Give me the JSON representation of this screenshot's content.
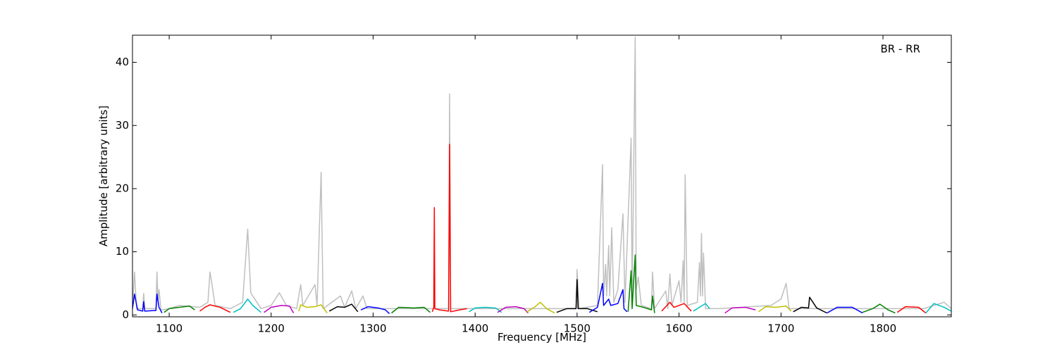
{
  "chart_data": {
    "type": "line",
    "xlabel": "Frequency [MHz]",
    "ylabel": "Amplitude [arbitrary units]",
    "annotation": "BR - RR",
    "xlim": [
      1064,
      1867
    ],
    "ylim": [
      -0.3,
      44.3
    ],
    "xticks": [
      1100,
      1200,
      1300,
      1400,
      1500,
      1600,
      1700,
      1800
    ],
    "yticks": [
      0,
      10,
      20,
      30,
      40
    ],
    "series": [
      {
        "color": "#bfbfbf",
        "x": [
          1064,
          1066,
          1068,
          1074,
          1075,
          1076,
          1087,
          1088,
          1089,
          1090,
          1092,
          1100,
          1110,
          1130,
          1138,
          1140,
          1142,
          1145,
          1160,
          1172,
          1177,
          1180,
          1190,
          1200,
          1208,
          1215,
          1225,
          1229,
          1231,
          1243,
          1245,
          1249,
          1251,
          1268,
          1272,
          1279,
          1283,
          1290,
          1294,
          1320,
          1360,
          1374,
          1375,
          1376,
          1420,
          1480,
          1499,
          1500,
          1502,
          1520,
          1525,
          1526,
          1528,
          1529,
          1531,
          1532,
          1534,
          1536,
          1540,
          1545,
          1547,
          1553,
          1554,
          1557,
          1558,
          1560,
          1563,
          1573,
          1574,
          1576,
          1587,
          1589,
          1591,
          1593,
          1600,
          1602,
          1604,
          1605,
          1606,
          1608,
          1618,
          1620,
          1621,
          1622,
          1623,
          1624,
          1626,
          1640,
          1690,
          1700,
          1705,
          1708,
          1750,
          1840,
          1860,
          1867
        ],
        "values": [
          1,
          6.8,
          1,
          1,
          3.4,
          1,
          1,
          6.8,
          2,
          4,
          0.8,
          1,
          1.5,
          1.2,
          2,
          6.8,
          4.8,
          1.5,
          1,
          2,
          13.6,
          3.5,
          1,
          1.5,
          3.5,
          1.5,
          1,
          4.8,
          1.5,
          4.8,
          1.5,
          22.6,
          1,
          3,
          1.2,
          3.8,
          1,
          3,
          1,
          1,
          1,
          1,
          35,
          1,
          1,
          1,
          1,
          7.2,
          1,
          1.5,
          23.8,
          3,
          8,
          3,
          11,
          3,
          13.8,
          2,
          4,
          16,
          2,
          28,
          2,
          44,
          4,
          6,
          1.5,
          1,
          6.8,
          1,
          3.8,
          1,
          6.5,
          1.5,
          5.4,
          2,
          8.6,
          2,
          22.2,
          1.5,
          2,
          8.3,
          3,
          12.9,
          3,
          9.8,
          1,
          1,
          1.5,
          2.5,
          5,
          1,
          1,
          1,
          2,
          1
        ]
      },
      {
        "color": "#0000ff",
        "x": [
          1064,
          1066,
          1069,
          1074,
          1075,
          1076,
          1087,
          1088,
          1090,
          1093
        ],
        "values": [
          1,
          3.3,
          0.8,
          0.6,
          2.1,
          0.6,
          0.7,
          3.3,
          1.2,
          0.3
        ]
      },
      {
        "color": "#008000",
        "x": [
          1095,
          1100,
          1110,
          1120,
          1125
        ],
        "values": [
          0.4,
          1,
          1.2,
          1.4,
          0.8
        ]
      },
      {
        "color": "#ff0000",
        "x": [
          1130,
          1135,
          1140,
          1150,
          1160
        ],
        "values": [
          0.6,
          1.2,
          1.6,
          1.2,
          0.4
        ]
      },
      {
        "color": "#00bfbf",
        "x": [
          1163,
          1170,
          1177,
          1182,
          1190
        ],
        "values": [
          0.4,
          1,
          2.5,
          1.5,
          0.4
        ]
      },
      {
        "color": "#bf00bf",
        "x": [
          1193,
          1200,
          1210,
          1218,
          1222
        ],
        "values": [
          0.4,
          1.2,
          1.5,
          1.4,
          0.3
        ]
      },
      {
        "color": "#bfbf00",
        "x": [
          1227,
          1229,
          1235,
          1243,
          1249,
          1255
        ],
        "values": [
          0.6,
          1.6,
          1.2,
          1.3,
          1.6,
          0.3
        ]
      },
      {
        "color": "#000000",
        "x": [
          1257,
          1265,
          1272,
          1279,
          1285
        ],
        "values": [
          0.6,
          1.3,
          1.2,
          1.7,
          0.5
        ]
      },
      {
        "color": "#0000ff",
        "x": [
          1288,
          1295,
          1305,
          1312,
          1316
        ],
        "values": [
          0.8,
          1.3,
          1.1,
          0.8,
          0.2
        ]
      },
      {
        "color": "#008000",
        "x": [
          1318,
          1325,
          1340,
          1350,
          1356
        ],
        "values": [
          0.3,
          1.2,
          1.1,
          1.2,
          0.4
        ]
      },
      {
        "color": "#ff0000",
        "x": [
          1358,
          1359.5,
          1360,
          1360.5,
          1365,
          1374,
          1375,
          1376,
          1385,
          1392
        ],
        "values": [
          0.5,
          1.2,
          17,
          1,
          0.8,
          0.6,
          27,
          0.5,
          0.8,
          1
        ]
      },
      {
        "color": "#00bfbf",
        "x": [
          1394,
          1400,
          1410,
          1420,
          1426
        ],
        "values": [
          0.5,
          1.1,
          1.2,
          1.1,
          0.4
        ]
      },
      {
        "color": "#bf00bf",
        "x": [
          1422,
          1430,
          1440,
          1448,
          1452
        ],
        "values": [
          0.4,
          1.2,
          1.3,
          1,
          0.3
        ]
      },
      {
        "color": "#bfbf00",
        "x": [
          1450,
          1458,
          1464,
          1470,
          1478
        ],
        "values": [
          0.4,
          1.2,
          2,
          1,
          0.3
        ]
      },
      {
        "color": "#000000",
        "x": [
          1480,
          1490,
          1499,
          1500,
          1501,
          1510,
          1520
        ],
        "values": [
          0.4,
          1,
          1,
          5.6,
          1,
          1,
          0.5
        ]
      },
      {
        "color": "#0000ff",
        "x": [
          1512,
          1520,
          1525,
          1526,
          1531,
          1533,
          1540,
          1545,
          1546,
          1549
        ],
        "values": [
          0.4,
          1.2,
          5,
          1.5,
          2.5,
          1.5,
          1.8,
          4,
          1,
          0.5
        ]
      },
      {
        "color": "#008000",
        "x": [
          1550,
          1553,
          1554,
          1557,
          1558,
          1565,
          1573,
          1574,
          1576
        ],
        "values": [
          0.5,
          7,
          1,
          9.5,
          1.5,
          1.2,
          0.8,
          3,
          0.3
        ]
      },
      {
        "color": "#ff0000",
        "x": [
          1583,
          1591,
          1595,
          1605,
          1612
        ],
        "values": [
          0.6,
          2,
          1.2,
          1.8,
          0.6
        ]
      },
      {
        "color": "#00bfbf",
        "x": [
          1614,
          1620,
          1626,
          1630
        ],
        "values": [
          0.6,
          1.2,
          1.8,
          1
        ]
      },
      {
        "color": "#bf00bf",
        "x": [
          1645,
          1652,
          1665,
          1675
        ],
        "values": [
          0.3,
          1.1,
          1.2,
          0.8
        ]
      },
      {
        "color": "#bfbf00",
        "x": [
          1678,
          1685,
          1695,
          1705,
          1710
        ],
        "values": [
          0.5,
          1.3,
          1.2,
          1.4,
          0.6
        ]
      },
      {
        "color": "#000000",
        "x": [
          1712,
          1720,
          1727,
          1728,
          1735,
          1745
        ],
        "values": [
          0.5,
          1.2,
          1.1,
          2.8,
          1.1,
          0.3
        ]
      },
      {
        "color": "#0000ff",
        "x": [
          1745,
          1755,
          1770,
          1780
        ],
        "values": [
          0.3,
          1.2,
          1.2,
          0.3
        ]
      },
      {
        "color": "#008000",
        "x": [
          1780,
          1790,
          1797,
          1805,
          1812
        ],
        "values": [
          0.4,
          1,
          1.7,
          0.8,
          0.3
        ]
      },
      {
        "color": "#ff0000",
        "x": [
          1814,
          1822,
          1835,
          1842
        ],
        "values": [
          0.4,
          1.3,
          1.2,
          0.3
        ]
      },
      {
        "color": "#00bfbf",
        "x": [
          1842,
          1850,
          1860,
          1867
        ],
        "values": [
          0.3,
          1.8,
          1.2,
          0.6
        ]
      }
    ]
  }
}
